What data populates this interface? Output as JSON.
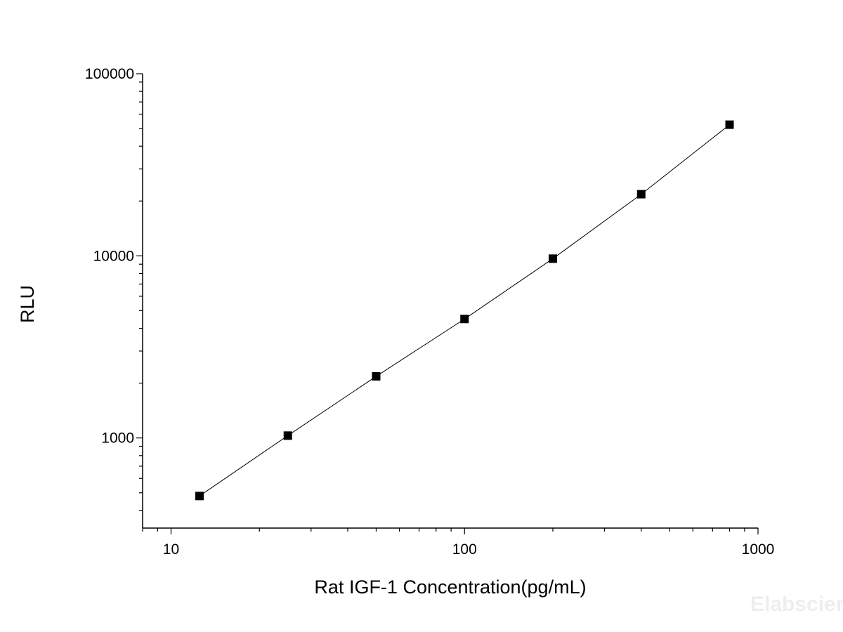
{
  "chart_data": {
    "type": "scatter",
    "title": "",
    "xlabel": "Rat IGF-1 Concentration(pg/mL)",
    "ylabel": "RLU",
    "x_scale": "log",
    "y_scale": "log",
    "xlim": [
      8,
      1000
    ],
    "ylim": [
      320,
      100000
    ],
    "x_ticks": [
      {
        "value": 10,
        "label": "10"
      },
      {
        "value": 100,
        "label": "100"
      },
      {
        "value": 1000,
        "label": "1000"
      }
    ],
    "y_ticks": [
      {
        "value": 1000,
        "label": "1000"
      },
      {
        "value": 10000,
        "label": "10000"
      },
      {
        "value": 100000,
        "label": "100000"
      }
    ],
    "grid": false,
    "legend": "none",
    "series": [
      {
        "x": [
          12.5,
          25,
          50,
          100,
          200,
          400,
          800
        ],
        "y": [
          480,
          1030,
          2180,
          4500,
          9650,
          21800,
          52500
        ],
        "marker": "square",
        "color": "#000000",
        "connected": true
      }
    ],
    "watermark": "Elabscience"
  }
}
